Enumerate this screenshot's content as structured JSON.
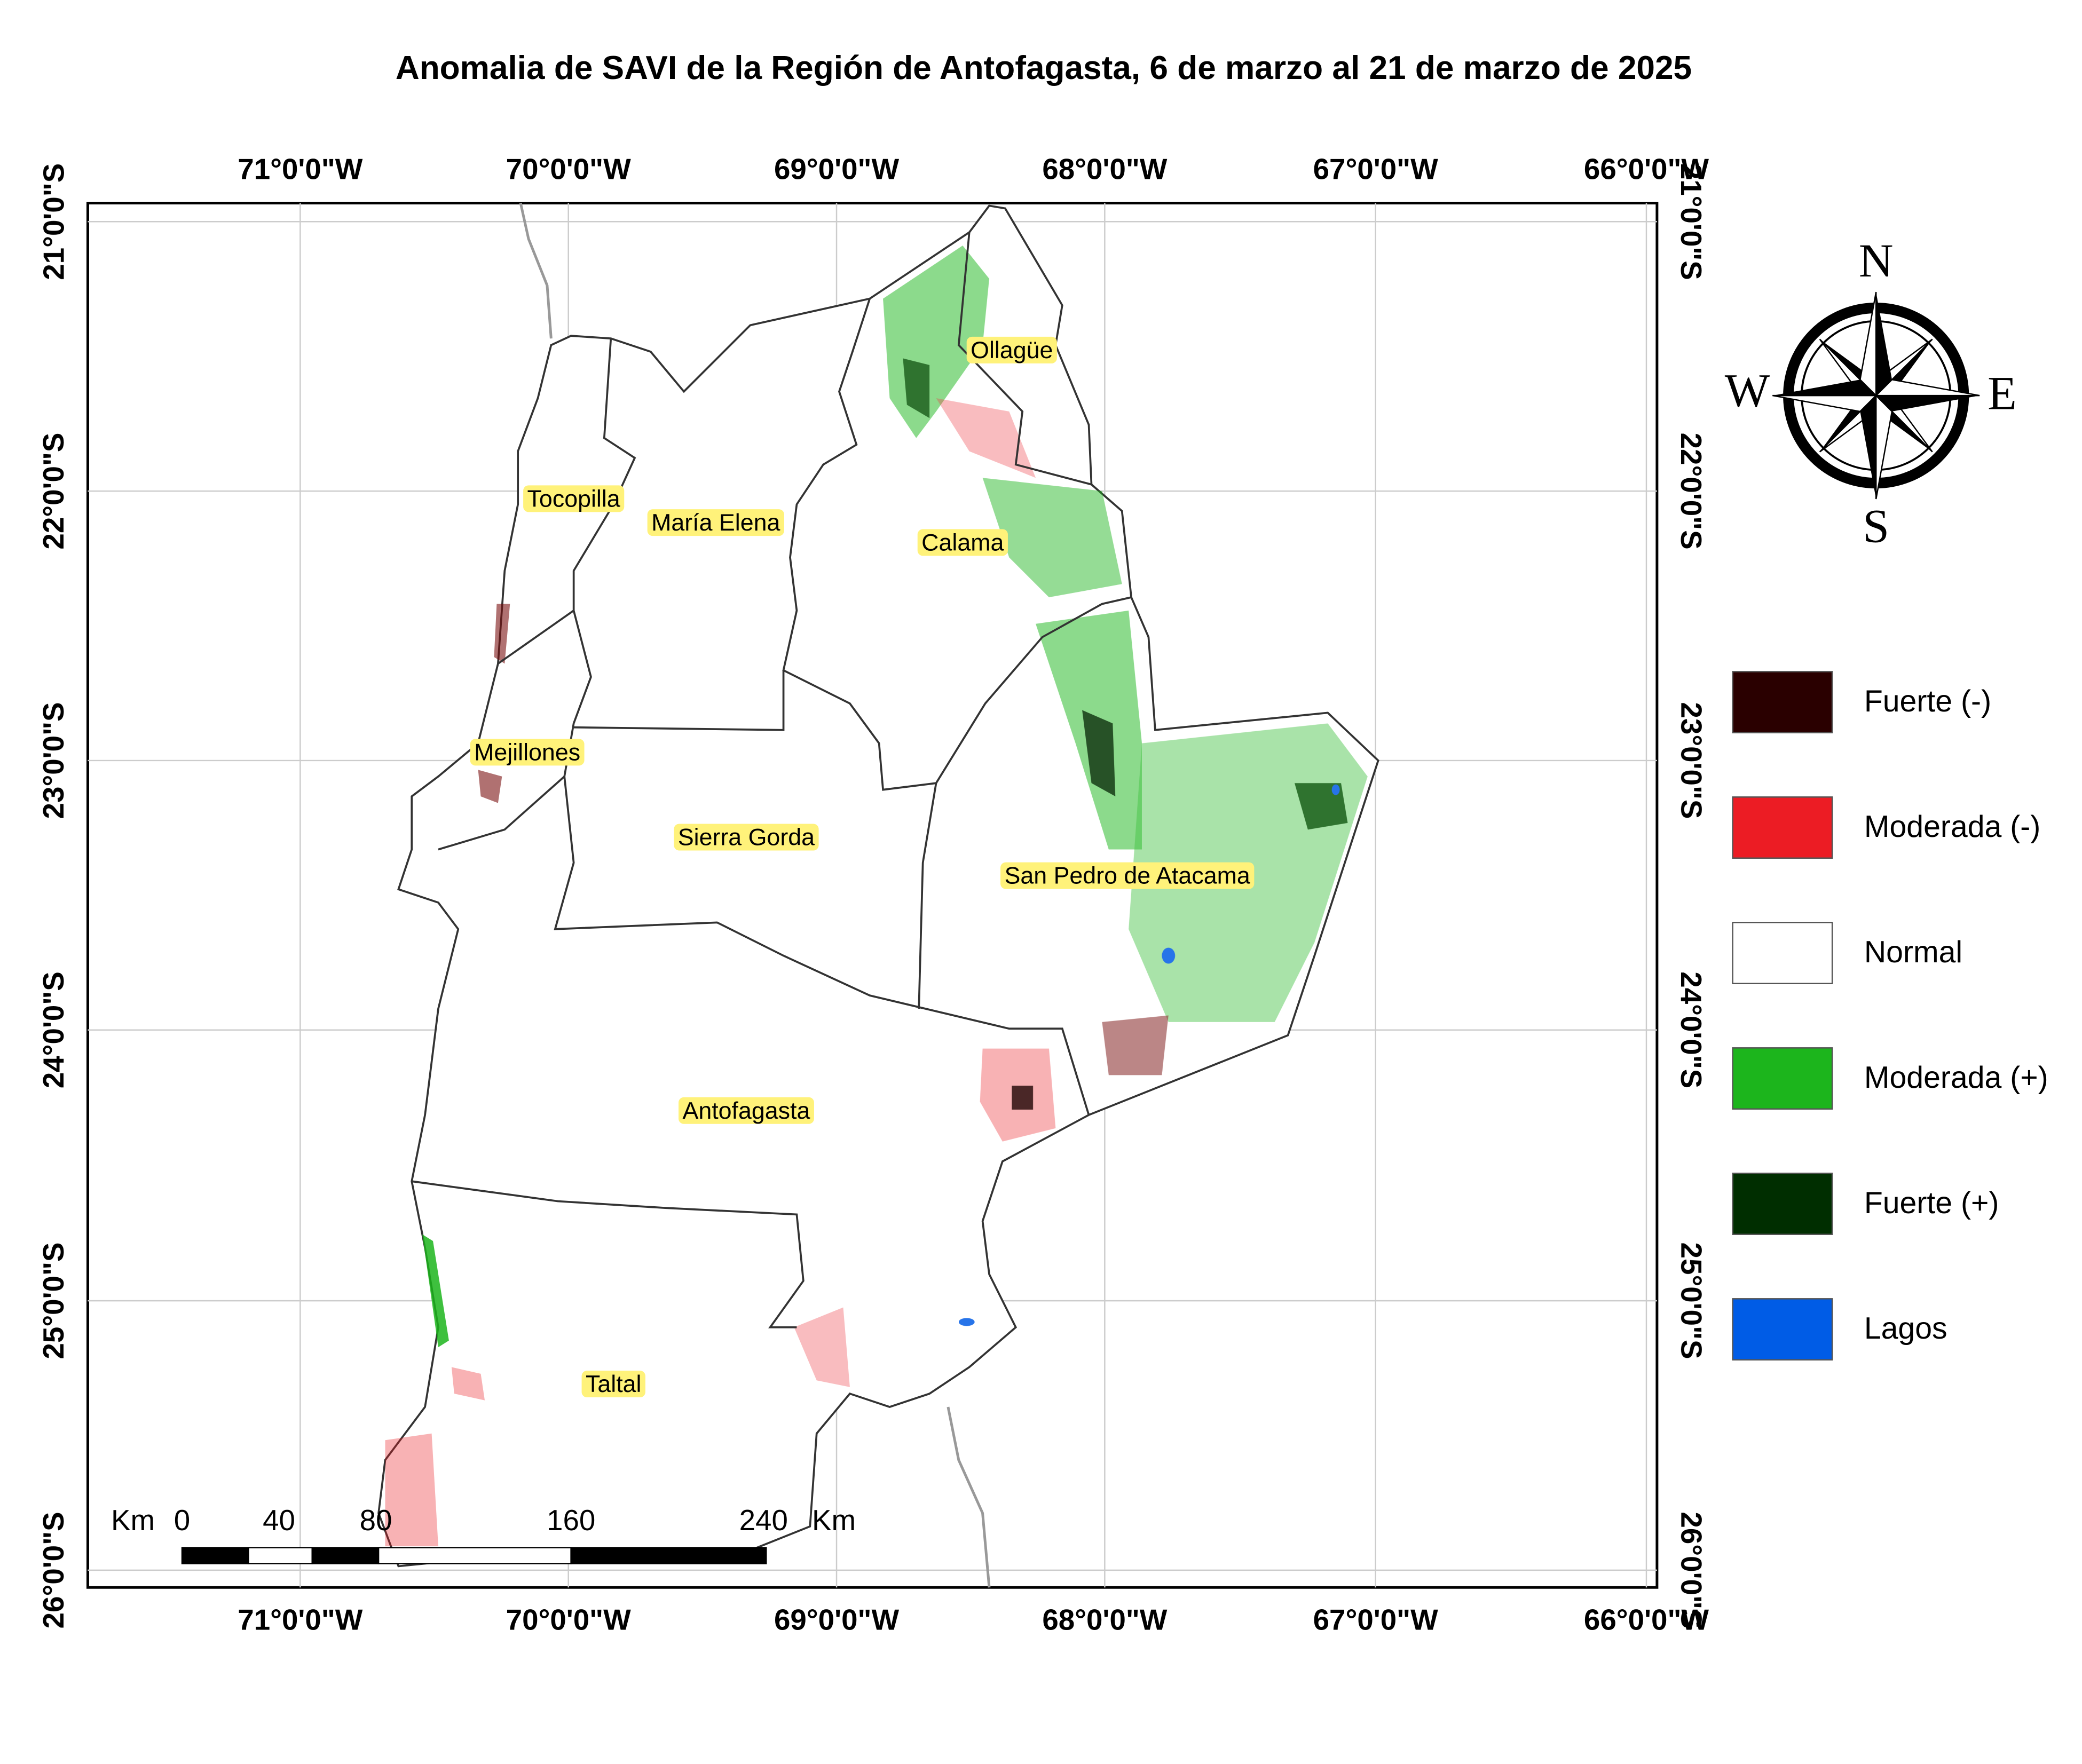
{
  "title": "Anomalia de SAVI de la Región de Antofagasta, 6 de marzo al 21 de marzo de 2025",
  "map": {
    "longitude_labels": [
      "71°0'0\"W",
      "70°0'0\"W",
      "69°0'0\"W",
      "68°0'0\"W",
      "67°0'0\"W",
      "66°0'0\"W"
    ],
    "latitude_labels": [
      "21°0'0\"S",
      "22°0'0\"S",
      "23°0'0\"S",
      "24°0'0\"S",
      "25°0'0\"S",
      "26°0'0\"S"
    ],
    "places": [
      "Ollagüe",
      "Tocopilla",
      "María Elena",
      "Calama",
      "Mejillones",
      "Sierra Gorda",
      "San Pedro de Atacama",
      "Antofagasta",
      "Taltal"
    ],
    "scale_bar": {
      "unit": "Km",
      "labels": [
        "0",
        "40",
        "80",
        "160",
        "240"
      ],
      "unit_end": "Km"
    },
    "compass": {
      "north": "N",
      "east": "E",
      "south": "S",
      "west": "W"
    }
  },
  "legend": {
    "items": [
      {
        "label": "Fuerte (-)",
        "color": "#2a0000"
      },
      {
        "label": "Moderada (-)",
        "color": "#ec1c24"
      },
      {
        "label": "Normal",
        "color": "#ffffff"
      },
      {
        "label": "Moderada (+)",
        "color": "#1cb51c"
      },
      {
        "label": "Fuerte (+)",
        "color": "#002e00"
      },
      {
        "label": "Lagos",
        "color": "#005ce6"
      }
    ]
  }
}
